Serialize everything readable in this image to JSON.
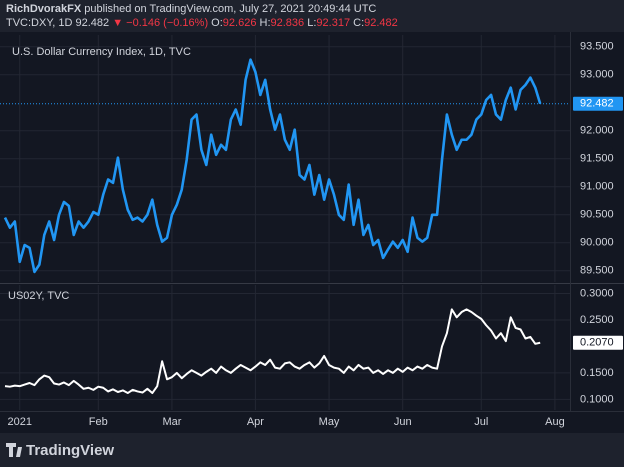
{
  "header": {
    "author": "RichDvorakFX",
    "published": "published on TradingView.com, July 27, 2021 20:49:44 UTC",
    "symbol": "TVC:DXY, 1D",
    "price": "92.482",
    "change": "▼ −0.146 (−0.16%)",
    "ohlc": [
      {
        "label": "O:",
        "value": "92.626"
      },
      {
        "label": "H:",
        "value": "92.836"
      },
      {
        "label": "L:",
        "value": "92.317"
      },
      {
        "label": "C:",
        "value": "92.482"
      }
    ]
  },
  "footer": {
    "brand": "TradingView"
  },
  "chart_data": [
    {
      "type": "line",
      "title": "U.S. Dollar Currency Index, 1D, TVC",
      "grid": true,
      "ylim": [
        89.3,
        93.71
      ],
      "yticks": [
        {
          "value": 89.5,
          "label": "89.500"
        },
        {
          "value": 90,
          "label": "90.000"
        },
        {
          "value": 90.5,
          "label": "90.500"
        },
        {
          "value": 91,
          "label": "91.000"
        },
        {
          "value": 91.5,
          "label": "91.500"
        },
        {
          "value": 92,
          "label": "92.000"
        },
        {
          "value": 93,
          "label": "93.000"
        },
        {
          "value": 93.5,
          "label": "93.500"
        }
      ],
      "series": [
        {
          "name": "DXY",
          "color": "#2196f3",
          "badge": "#2196f3",
          "values": [
            90.45,
            90.27,
            90.38,
            89.66,
            89.96,
            89.91,
            89.48,
            89.61,
            90.14,
            90.38,
            90.05,
            90.5,
            90.73,
            90.66,
            90.14,
            90.38,
            90.27,
            90.38,
            90.55,
            90.5,
            90.86,
            91.13,
            91.07,
            91.52,
            90.95,
            90.59,
            90.41,
            90.45,
            90.38,
            90.5,
            90.77,
            90.32,
            90.02,
            90.09,
            90.5,
            90.68,
            90.95,
            91.48,
            92.2,
            92.29,
            91.66,
            91.39,
            91.93,
            91.57,
            91.75,
            91.66,
            92.2,
            92.38,
            92.11,
            92.91,
            93.27,
            93.05,
            92.64,
            92.91,
            92.38,
            92.02,
            92.29,
            91.84,
            91.66,
            92.02,
            91.21,
            91.13,
            91.39,
            90.86,
            91.21,
            90.77,
            91.13,
            90.86,
            90.5,
            90.41,
            91.04,
            90.32,
            90.77,
            90.14,
            90.32,
            89.96,
            90.05,
            89.73,
            89.88,
            90.02,
            89.91,
            90.05,
            89.84,
            90.45,
            90.09,
            90.02,
            90.09,
            90.5,
            90.5,
            91.48,
            92.29,
            91.93,
            91.66,
            91.84,
            91.84,
            91.93,
            92.2,
            92.29,
            92.55,
            92.64,
            92.29,
            92.2,
            92.55,
            92.77,
            92.38,
            92.73,
            92.82,
            92.95,
            92.77,
            92.482,
            null,
            null,
            null
          ]
        }
      ]
    },
    {
      "type": "line",
      "title": "US02Y, TVC",
      "grid": true,
      "ylim": [
        0.08,
        0.316
      ],
      "yticks": [
        {
          "value": 0.1,
          "label": "0.1000"
        },
        {
          "value": 0.15,
          "label": "0.1500"
        },
        {
          "value": 0.25,
          "label": "0.2500"
        },
        {
          "value": 0.3,
          "label": "0.3000"
        }
      ],
      "categories": [
        null,
        null,
        null,
        "2021",
        null,
        null,
        null,
        null,
        null,
        null,
        null,
        null,
        null,
        null,
        null,
        null,
        null,
        null,
        null,
        "Feb",
        null,
        null,
        null,
        null,
        null,
        null,
        null,
        null,
        null,
        null,
        null,
        null,
        null,
        null,
        "Mar",
        null,
        null,
        null,
        null,
        null,
        null,
        null,
        null,
        null,
        null,
        null,
        null,
        null,
        null,
        null,
        null,
        "Apr",
        null,
        null,
        null,
        null,
        null,
        null,
        null,
        null,
        null,
        null,
        null,
        null,
        null,
        null,
        "May",
        null,
        null,
        null,
        null,
        null,
        null,
        null,
        null,
        null,
        null,
        null,
        null,
        null,
        null,
        "Jun",
        null,
        null,
        null,
        null,
        null,
        null,
        null,
        null,
        null,
        null,
        null,
        null,
        null,
        null,
        null,
        "Jul",
        null,
        null,
        null,
        null,
        null,
        null,
        null,
        null,
        null,
        null,
        null,
        null,
        null,
        null,
        "Aug"
      ],
      "series": [
        {
          "name": "US02Y",
          "color": "#ffffff",
          "badge": "#ffffff",
          "values": [
            0.125,
            0.124,
            0.126,
            0.125,
            0.128,
            0.131,
            0.127,
            0.138,
            0.145,
            0.142,
            0.13,
            0.128,
            0.132,
            0.127,
            0.135,
            0.128,
            0.12,
            0.122,
            0.118,
            0.124,
            0.122,
            0.115,
            0.119,
            0.114,
            0.117,
            0.112,
            0.118,
            0.115,
            0.113,
            0.12,
            0.112,
            0.125,
            0.172,
            0.138,
            0.142,
            0.15,
            0.14,
            0.148,
            0.155,
            0.15,
            0.145,
            0.152,
            0.158,
            0.15,
            0.162,
            0.155,
            0.15,
            0.158,
            0.165,
            0.16,
            0.155,
            0.162,
            0.17,
            0.165,
            0.175,
            0.16,
            0.158,
            0.168,
            0.17,
            0.162,
            0.158,
            0.165,
            0.17,
            0.16,
            0.168,
            0.182,
            0.165,
            0.16,
            0.158,
            0.15,
            0.162,
            0.155,
            0.165,
            0.158,
            0.16,
            0.15,
            0.155,
            0.148,
            0.155,
            0.15,
            0.158,
            0.152,
            0.16,
            0.155,
            0.162,
            0.158,
            0.165,
            0.16,
            0.158,
            0.2,
            0.225,
            0.27,
            0.255,
            0.265,
            0.27,
            0.265,
            0.258,
            0.252,
            0.24,
            0.23,
            0.215,
            0.225,
            0.21,
            0.255,
            0.235,
            0.232,
            0.215,
            0.218,
            0.205,
            0.207,
            null,
            null,
            null
          ],
          "value_labels": [
            null,
            null,
            null,
            null,
            null,
            null,
            null,
            null,
            null,
            null,
            null,
            null,
            null,
            null,
            null,
            null,
            null,
            null,
            null,
            null,
            null,
            null,
            null,
            null,
            null,
            null,
            null,
            null,
            null,
            null,
            null,
            null,
            null,
            null,
            null,
            null,
            null,
            null,
            null,
            null,
            null,
            null,
            null,
            null,
            null,
            null,
            null,
            null,
            null,
            null,
            null,
            null,
            null,
            null,
            null,
            null,
            null,
            null,
            null,
            null,
            null,
            null,
            null,
            null,
            null,
            null,
            null,
            null,
            null,
            null,
            null,
            null,
            null,
            null,
            null,
            null,
            null,
            null,
            null,
            null,
            null,
            null,
            null,
            null,
            null,
            null,
            null,
            null,
            null,
            null,
            null,
            null,
            null,
            null,
            null,
            null,
            null,
            null,
            null,
            null,
            null,
            null,
            null,
            null,
            null,
            null,
            null,
            null,
            null,
            "0.2070",
            null,
            null,
            null
          ]
        }
      ]
    }
  ]
}
